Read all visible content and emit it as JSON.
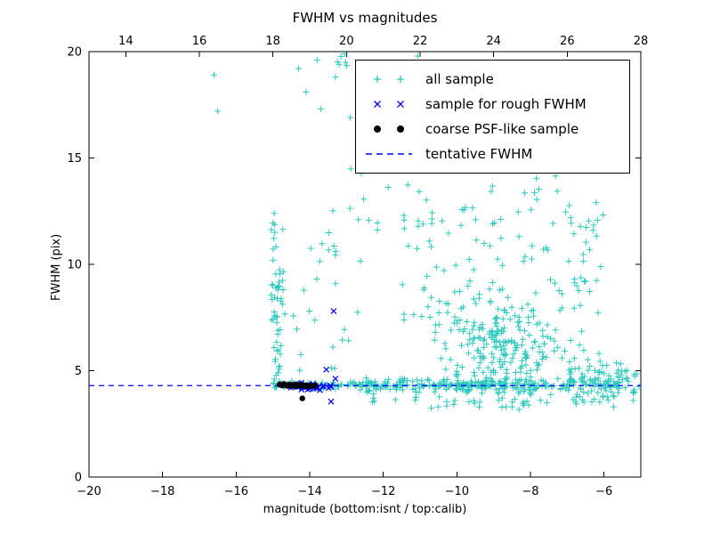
{
  "chart_data": {
    "type": "scatter",
    "title": "FWHM vs magnitudes",
    "xlabel": "magnitude (bottom:isnt / top:calib)",
    "ylabel": "FWHM (pix)",
    "xlim": [
      -20,
      -5
    ],
    "ylim": [
      0,
      20
    ],
    "top_xlim": [
      13,
      28
    ],
    "x_ticks": {
      "values": [
        -20,
        -18,
        -16,
        -14,
        -12,
        -10,
        -8,
        -6
      ],
      "labels": [
        "−20",
        "−18",
        "−16",
        "−14",
        "−12",
        "−10",
        "−8",
        "−6"
      ]
    },
    "top_x_ticks": {
      "values": [
        14,
        16,
        18,
        20,
        22,
        24,
        26,
        28
      ],
      "labels": [
        "14",
        "16",
        "18",
        "20",
        "22",
        "24",
        "26",
        "28"
      ]
    },
    "y_ticks": {
      "values": [
        0,
        5,
        10,
        15,
        20
      ],
      "labels": [
        "0",
        "5",
        "10",
        "15",
        "20"
      ]
    },
    "grid": false,
    "legend_position": "upper center-right",
    "tentative_fwhm": 4.3,
    "seed": 20240817,
    "series": [
      {
        "name": "all sample",
        "marker": "plus",
        "color": "#2cc7bd",
        "points": [
          [
            -16.6,
            18.9
          ],
          [
            -16.5,
            17.2
          ],
          [
            -14.3,
            19.2
          ],
          [
            -14.1,
            18.1
          ],
          [
            -13.8,
            19.6
          ],
          [
            -13.7,
            17.3
          ],
          [
            -13.3,
            18.8
          ],
          [
            -13.05,
            19.9
          ],
          [
            -12.9,
            16.9
          ],
          [
            -12.3,
            15.6
          ]
        ],
        "clusters": [
          {
            "count": 220,
            "x": {
              "dist": "uniform",
              "min": -15.0,
              "max": -5.05
            },
            "y": {
              "dist": "gauss",
              "mean": 4.32,
              "sd": 0.12
            }
          },
          {
            "count": 80,
            "x": {
              "dist": "uniform",
              "min": -12.5,
              "max": -8.0
            },
            "y": {
              "dist": "gauss",
              "mean": 4.35,
              "sd": 0.18
            }
          },
          {
            "count": 260,
            "x": {
              "dist": "gauss",
              "mean": -8.7,
              "sd": 0.9,
              "clip_min": -11.2,
              "clip_max": -5.15
            },
            "y": {
              "dist": "gauss",
              "mean": 5.8,
              "sd": 1.3,
              "clip_min": 3.3,
              "clip_max": 11.5
            }
          },
          {
            "count": 100,
            "x": {
              "dist": "uniform",
              "min": -11.5,
              "max": -6.0
            },
            "y": {
              "dist": "uniform",
              "min": 7.0,
              "max": 13.5
            }
          },
          {
            "count": 70,
            "x": {
              "dist": "uniform",
              "min": -13.6,
              "max": -6.2
            },
            "y": {
              "dist": "uniform",
              "min": 11.0,
              "max": 19.8
            }
          },
          {
            "count": 40,
            "x": {
              "dist": "uniform",
              "min": -15.05,
              "max": -14.72
            },
            "y": {
              "dist": "uniform",
              "min": 4.2,
              "max": 9.6
            }
          },
          {
            "count": 10,
            "x": {
              "dist": "uniform",
              "min": -15.05,
              "max": -14.75
            },
            "y": {
              "dist": "uniform",
              "min": 9.6,
              "max": 12.5
            }
          },
          {
            "count": 30,
            "x": {
              "dist": "uniform",
              "min": -15.0,
              "max": -12.5
            },
            "y": {
              "dist": "uniform",
              "min": 5.0,
              "max": 12.0
            }
          },
          {
            "count": 25,
            "x": {
              "dist": "uniform",
              "min": -13.0,
              "max": -5.3
            },
            "y": {
              "dist": "gauss",
              "mean": 3.6,
              "sd": 0.25
            }
          },
          {
            "count": 90,
            "x": {
              "dist": "uniform",
              "min": -7.0,
              "max": -5.1
            },
            "y": {
              "dist": "gauss",
              "mean": 4.5,
              "sd": 0.55,
              "clip_min": 3.3,
              "clip_max": 6.5
            }
          }
        ]
      },
      {
        "name": "sample for rough FWHM",
        "marker": "x",
        "color": "#0000ff",
        "points": [
          [
            -13.35,
            7.8
          ],
          [
            -13.55,
            5.05
          ],
          [
            -13.42,
            3.55
          ],
          [
            -13.3,
            4.62
          ]
        ],
        "clusters": [
          {
            "count": 42,
            "x": {
              "dist": "uniform",
              "min": -14.55,
              "max": -13.28
            },
            "y": {
              "dist": "gauss",
              "mean": 4.27,
              "sd": 0.07
            }
          }
        ]
      },
      {
        "name": "coarse PSF-like sample",
        "marker": "dot",
        "color": "#000000",
        "points": [
          [
            -14.82,
            4.35
          ],
          [
            -14.75,
            4.3
          ],
          [
            -14.7,
            4.38
          ],
          [
            -14.65,
            4.32
          ],
          [
            -14.6,
            4.28
          ],
          [
            -14.55,
            4.35
          ],
          [
            -14.5,
            4.3
          ],
          [
            -14.45,
            4.33
          ],
          [
            -14.4,
            4.27
          ],
          [
            -14.38,
            4.36
          ],
          [
            -14.3,
            4.3
          ],
          [
            -14.25,
            4.33
          ],
          [
            -14.2,
            4.28
          ],
          [
            -14.15,
            4.3
          ],
          [
            -14.1,
            4.32
          ],
          [
            -14.05,
            4.25
          ],
          [
            -14.0,
            4.3
          ],
          [
            -13.95,
            4.28
          ],
          [
            -13.85,
            4.31
          ],
          [
            -14.2,
            3.7
          ]
        ]
      },
      {
        "name": "tentative FWHM",
        "type": "hline",
        "style": "dashed",
        "color": "#0000ff",
        "y": 4.3
      }
    ]
  }
}
